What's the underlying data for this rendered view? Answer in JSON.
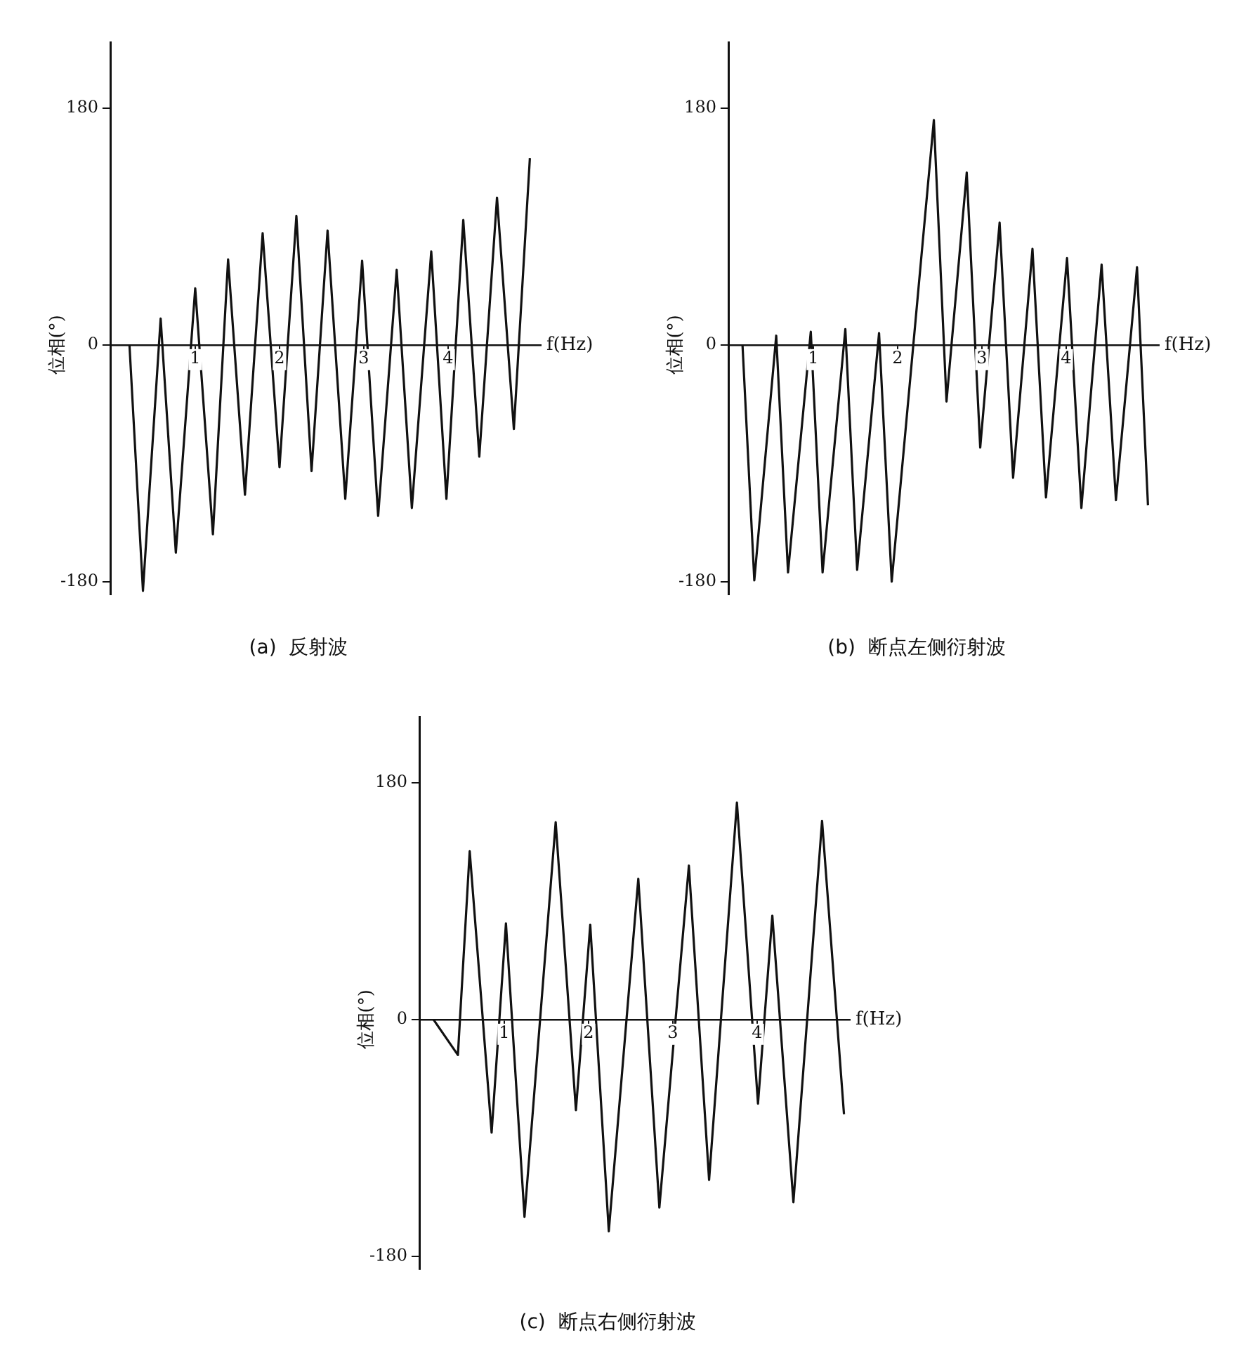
{
  "chart_data": [
    {
      "type": "line",
      "title": "(a)  反射波",
      "xlabel": "f(Hz)",
      "ylabel": "位相(°)",
      "xlim": [
        0,
        5.1
      ],
      "xticks": [
        1,
        2,
        3,
        4
      ],
      "ylim": [
        -190,
        230
      ],
      "yticks": [
        -180,
        0,
        180
      ],
      "grid": false,
      "legend": false,
      "marker": "none",
      "line_style": "solid",
      "series": [
        {
          "color": "#111111",
          "x": [
            0.22,
            0.38,
            0.59,
            0.77,
            1.0,
            1.21,
            1.39,
            1.59,
            1.8,
            2.0,
            2.2,
            2.38,
            2.57,
            2.78,
            2.98,
            3.17,
            3.39,
            3.57,
            3.8,
            3.98,
            4.18,
            4.37,
            4.58,
            4.78,
            4.97
          ],
          "values": [
            0,
            -187,
            20,
            -158,
            43,
            -144,
            65,
            -114,
            85,
            -93,
            98,
            -96,
            87,
            -117,
            64,
            -130,
            57,
            -124,
            71,
            -117,
            95,
            -85,
            112,
            -64,
            142
          ]
        }
      ]
    },
    {
      "type": "line",
      "title": "(b)  断点左侧衍射波",
      "xlabel": "f(Hz)",
      "ylabel": "位相(°)",
      "xlim": [
        0,
        5.1
      ],
      "xticks": [
        1,
        2,
        3,
        4
      ],
      "ylim": [
        -190,
        230
      ],
      "yticks": [
        -180,
        0,
        180
      ],
      "grid": false,
      "legend": false,
      "marker": "none",
      "line_style": "solid",
      "series": [
        {
          "color": "#111111",
          "x": [
            0.16,
            0.3,
            0.56,
            0.7,
            0.97,
            1.11,
            1.38,
            1.52,
            1.78,
            1.93,
            2.43,
            2.58,
            2.82,
            2.98,
            3.21,
            3.37,
            3.6,
            3.76,
            4.01,
            4.18,
            4.42,
            4.59,
            4.84,
            4.97
          ],
          "values": [
            0,
            -179,
            7,
            -173,
            10,
            -173,
            12,
            -171,
            9,
            -180,
            171,
            -43,
            131,
            -78,
            93,
            -101,
            73,
            -116,
            66,
            -124,
            61,
            -118,
            59,
            -122
          ]
        }
      ]
    },
    {
      "type": "line",
      "title": "(c)  断点右侧衍射波",
      "xlabel": "f(Hz)",
      "ylabel": "位相(°)",
      "xlim": [
        0,
        5.1
      ],
      "xticks": [
        1,
        2,
        3,
        4
      ],
      "ylim": [
        -190,
        230
      ],
      "yticks": [
        -180,
        0,
        180
      ],
      "grid": false,
      "legend": false,
      "marker": "none",
      "line_style": "solid",
      "series": [
        {
          "color": "#111111",
          "x": [
            0.16,
            0.45,
            0.59,
            0.85,
            1.02,
            1.24,
            1.61,
            1.85,
            2.02,
            2.24,
            2.59,
            2.84,
            3.19,
            3.43,
            3.76,
            4.01,
            4.18,
            4.43,
            4.77,
            5.03
          ],
          "values": [
            0,
            -27,
            128,
            -86,
            73,
            -150,
            150,
            -69,
            72,
            -161,
            107,
            -143,
            117,
            -122,
            165,
            -64,
            79,
            -139,
            151,
            -72
          ]
        }
      ]
    }
  ]
}
